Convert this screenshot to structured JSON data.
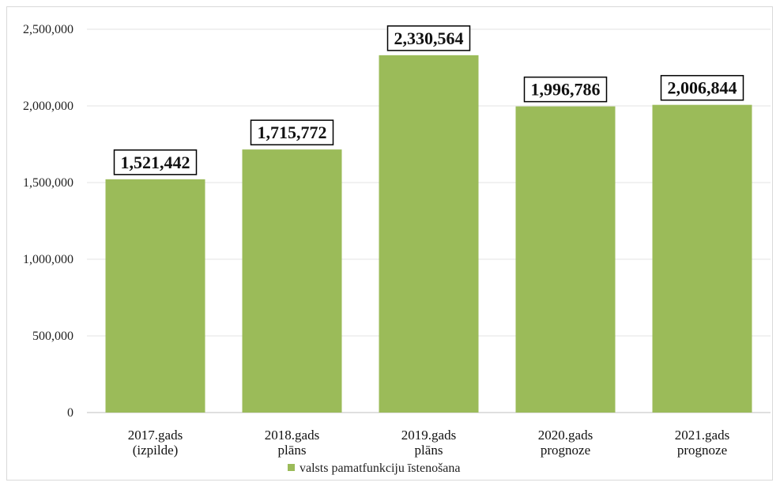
{
  "chart_data": {
    "type": "bar",
    "categories": [
      [
        "2017.gads",
        "(izpilde)"
      ],
      [
        "2018.gads",
        "plāns"
      ],
      [
        "2019.gads",
        "plāns"
      ],
      [
        "2020.gads",
        "prognoze"
      ],
      [
        "2021.gads",
        "prognoze"
      ]
    ],
    "series": [
      {
        "name": "valsts pamatfunkciju īstenošana",
        "color": "#9bbb59",
        "values": [
          1521442,
          1715772,
          2330564,
          1996786,
          2006844
        ],
        "labels": [
          "1,521,442",
          "1,715,772",
          "2,330,564",
          "1,996,786",
          "2,006,844"
        ]
      }
    ],
    "yticks": [
      0,
      500000,
      1000000,
      1500000,
      2000000,
      2500000
    ],
    "ytick_labels": [
      "0",
      "500,000",
      "1,000,000",
      "1,500,000",
      "2,000,000",
      "2,500,000"
    ],
    "ylim": [
      0,
      2500000
    ],
    "grid": true,
    "legend_position": "bottom"
  }
}
